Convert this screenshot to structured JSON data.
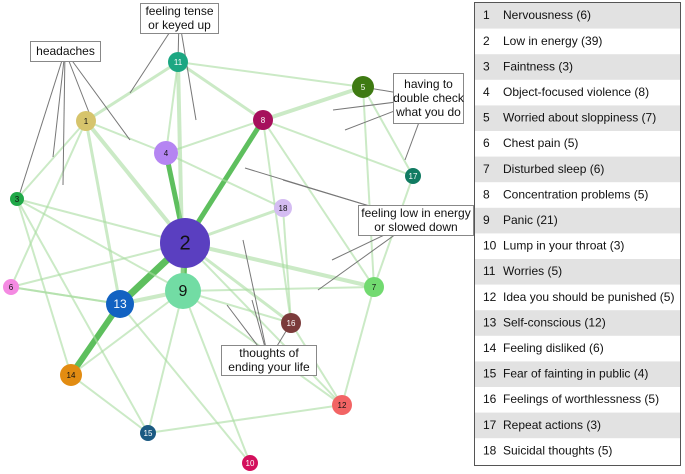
{
  "nodes": [
    {
      "label": "1",
      "color": "#d6c46c"
    },
    {
      "label": "2",
      "color": "#5a3fc0"
    },
    {
      "label": "3",
      "color": "#20a848"
    },
    {
      "label": "4",
      "color": "#b585f2"
    },
    {
      "label": "5",
      "color": "#3e7a12"
    },
    {
      "label": "6",
      "color": "#f48ae2"
    },
    {
      "label": "7",
      "color": "#72da70"
    },
    {
      "label": "8",
      "color": "#a6105c"
    },
    {
      "label": "9",
      "color": "#72dca4"
    },
    {
      "label": "10",
      "color": "#d3105c"
    },
    {
      "label": "11",
      "color": "#1ca782"
    },
    {
      "label": "12",
      "color": "#f26464"
    },
    {
      "label": "13",
      "color": "#1262c2"
    },
    {
      "label": "14",
      "color": "#e28c12"
    },
    {
      "label": "15",
      "color": "#1b5a82"
    },
    {
      "label": "16",
      "color": "#7b3b3b"
    },
    {
      "label": "17",
      "color": "#117b62"
    },
    {
      "label": "18",
      "color": "#d4bcf2"
    }
  ],
  "callouts": [
    {
      "lines": [
        "feeling tense",
        "or keyed up"
      ]
    },
    {
      "lines": [
        "headaches"
      ]
    },
    {
      "lines": [
        "having to",
        "double check",
        "what you do"
      ]
    },
    {
      "lines": [
        "feeling low in energy",
        "or slowed down"
      ]
    },
    {
      "lines": [
        "thoughts of",
        "ending your life"
      ]
    }
  ],
  "legend": {
    "items": [
      {
        "number": "1",
        "text": "Nervousness (6)"
      },
      {
        "number": "2",
        "text": "Low in energy (39)"
      },
      {
        "number": "3",
        "text": "Faintness (3)"
      },
      {
        "number": "4",
        "text": "Object-focused violence (8)"
      },
      {
        "number": "5",
        "text": "Worried about sloppiness (7)"
      },
      {
        "number": "6",
        "text": "Chest pain (5)"
      },
      {
        "number": "7",
        "text": "Disturbed sleep (6)"
      },
      {
        "number": "8",
        "text": "Concentration problems (5)"
      },
      {
        "number": "9",
        "text": "Panic (21)"
      },
      {
        "number": "10",
        "text": "Lump in your throat (3)"
      },
      {
        "number": "11",
        "text": "Worries (5)"
      },
      {
        "number": "12",
        "text": "Idea you should be punished (5)"
      },
      {
        "number": "13",
        "text": "Self-conscious (12)"
      },
      {
        "number": "14",
        "text": "Feeling disliked (6)"
      },
      {
        "number": "15",
        "text": "Fear of fainting in public (4)"
      },
      {
        "number": "16",
        "text": "Feelings of worthlessness (5)"
      },
      {
        "number": "17",
        "text": "Repeat actions (3)"
      },
      {
        "number": "18",
        "text": "Suicidal thoughts (5)"
      }
    ]
  }
}
